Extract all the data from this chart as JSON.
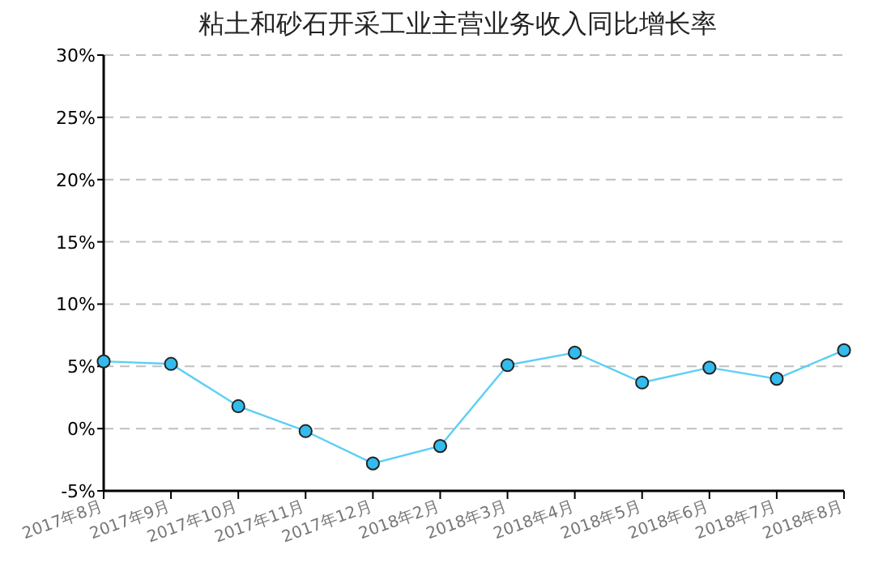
{
  "chart_data": {
    "type": "line",
    "title": "粘土和砂石开采工业主营业务收入同比增长率",
    "categories": [
      "2017年8月",
      "2017年9月",
      "2017年10月",
      "2017年11月",
      "2017年12月",
      "2018年2月",
      "2018年3月",
      "2018年4月",
      "2018年5月",
      "2018年6月",
      "2018年7月",
      "2018年8月"
    ],
    "series": [
      {
        "color": "#5bcff5",
        "values": [
          5.4,
          5.2,
          1.8,
          -0.2,
          -2.8,
          -1.4,
          5.1,
          6.1,
          3.7,
          4.9,
          4.0,
          6.3
        ]
      }
    ],
    "ylim": [
      -5,
      30
    ],
    "yticks": [
      {
        "value": -5,
        "label": "-5%"
      },
      {
        "value": 0,
        "label": "0%"
      },
      {
        "value": 5,
        "label": "5%"
      },
      {
        "value": 10,
        "label": "10%"
      },
      {
        "value": 15,
        "label": "15%"
      },
      {
        "value": 20,
        "label": "20%"
      },
      {
        "value": 25,
        "label": "25%"
      },
      {
        "value": 30,
        "label": "30%"
      }
    ],
    "grid": "y",
    "marker": "circle",
    "line_style": "solid"
  }
}
